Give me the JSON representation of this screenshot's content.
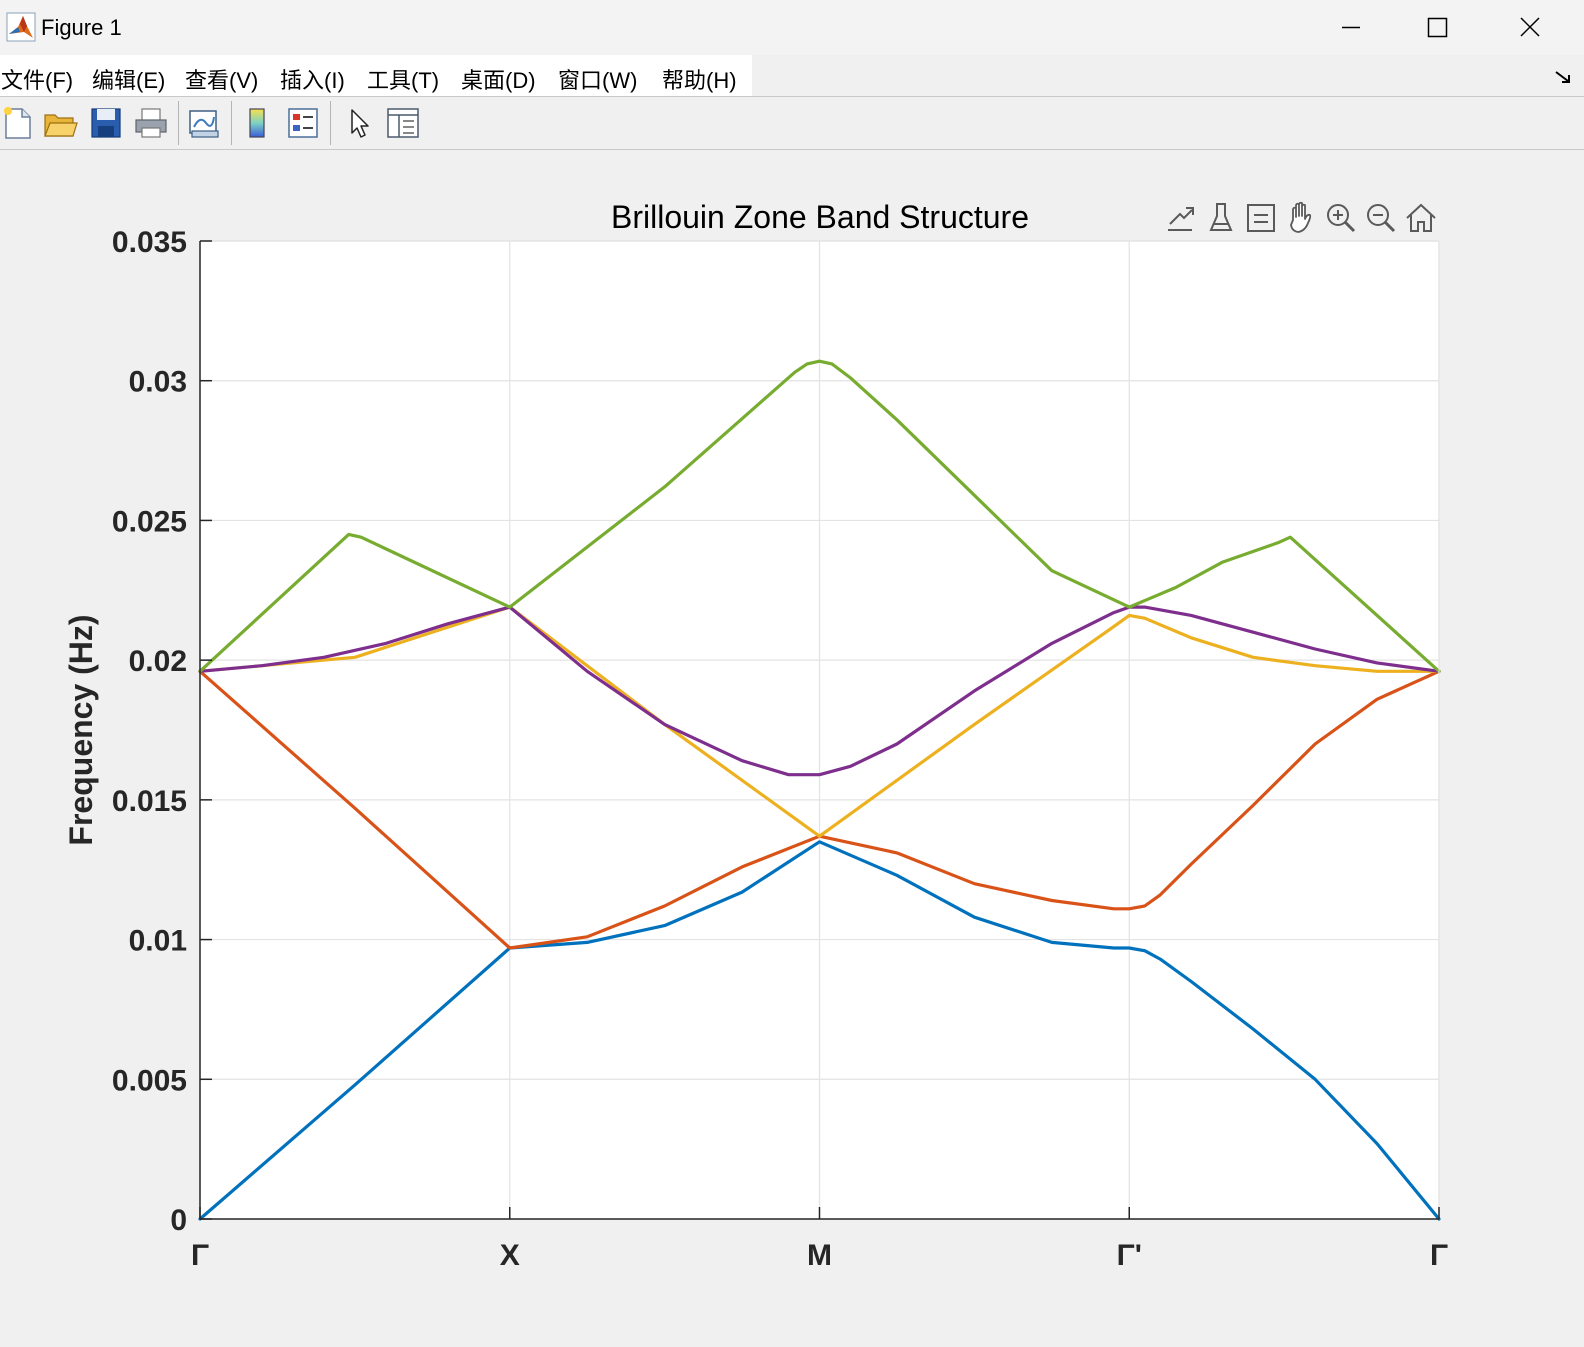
{
  "window": {
    "title": "Figure 1"
  },
  "menu": [
    "文件(F)",
    "编辑(E)",
    "查看(V)",
    "插入(I)",
    "工具(T)",
    "桌面(D)",
    "窗口(W)",
    "帮助(H)"
  ],
  "toolbar_icons": [
    "new-figure-icon",
    "open-file-icon",
    "save-icon",
    "print-icon",
    "link-plot-icon",
    "colorbar-icon",
    "legend-icon",
    "edit-plot-arrow-icon",
    "property-inspector-icon"
  ],
  "axes_toolbar_icons": [
    "export-icon",
    "brush-icon",
    "data-tips-icon",
    "pan-icon",
    "zoom-in-icon",
    "zoom-out-icon",
    "restore-view-icon"
  ],
  "chart_data": {
    "type": "line",
    "title": "Brillouin Zone Band Structure",
    "xlabel": "",
    "ylabel": "Frequency (Hz)",
    "xlim": [
      0,
      4
    ],
    "ylim": [
      0,
      0.035
    ],
    "xticks": [
      0,
      1,
      2,
      3,
      4
    ],
    "xtick_labels": [
      "Γ",
      "X",
      "M",
      "Γ'",
      "Γ"
    ],
    "yticks": [
      0,
      0.005,
      0.01,
      0.015,
      0.02,
      0.025,
      0.03,
      0.035
    ],
    "ytick_labels": [
      "0",
      "0.005",
      "0.01",
      "0.015",
      "0.02",
      "0.025",
      "0.03",
      "0.035"
    ],
    "grid": true,
    "series": [
      {
        "color": "#0072BD",
        "x": [
          0,
          0.5,
          1,
          1.25,
          1.5,
          1.75,
          2,
          2.25,
          2.5,
          2.75,
          2.95,
          3,
          3.05,
          3.1,
          3.2,
          3.4,
          3.6,
          3.8,
          4
        ],
        "y": [
          0,
          0.0048,
          0.0097,
          0.0099,
          0.0105,
          0.0117,
          0.0135,
          0.0123,
          0.0108,
          0.0099,
          0.0097,
          0.0097,
          0.0096,
          0.0093,
          0.0085,
          0.0068,
          0.005,
          0.0027,
          0
        ]
      },
      {
        "color": "#D95319",
        "x": [
          0,
          0.5,
          1,
          1.25,
          1.5,
          1.75,
          2,
          2.25,
          2.5,
          2.75,
          2.95,
          3,
          3.05,
          3.1,
          3.2,
          3.4,
          3.6,
          3.8,
          4
        ],
        "y": [
          0.0196,
          0.0147,
          0.0097,
          0.0101,
          0.0112,
          0.0126,
          0.0137,
          0.0131,
          0.012,
          0.0114,
          0.0111,
          0.0111,
          0.0112,
          0.0116,
          0.0127,
          0.0148,
          0.017,
          0.0186,
          0.0196
        ]
      },
      {
        "color": "#EDB120",
        "x": [
          0,
          0.5,
          1,
          1.5,
          2,
          2.5,
          2.95,
          3,
          3.05,
          3.2,
          3.4,
          3.6,
          3.8,
          4
        ],
        "y": [
          0.0196,
          0.0201,
          0.0219,
          0.0177,
          0.0137,
          0.0177,
          0.0212,
          0.0216,
          0.0215,
          0.0208,
          0.0201,
          0.0198,
          0.0196,
          0.0196
        ]
      },
      {
        "color": "#7E2F8E",
        "x": [
          0,
          0.2,
          0.4,
          0.6,
          0.8,
          1,
          1.25,
          1.5,
          1.75,
          1.9,
          2,
          2.1,
          2.25,
          2.5,
          2.75,
          2.95,
          3,
          3.05,
          3.2,
          3.4,
          3.6,
          3.8,
          4
        ],
        "y": [
          0.0196,
          0.0198,
          0.0201,
          0.0206,
          0.0213,
          0.0219,
          0.0196,
          0.0177,
          0.0164,
          0.0159,
          0.0159,
          0.0162,
          0.017,
          0.0189,
          0.0206,
          0.0217,
          0.0219,
          0.0219,
          0.0216,
          0.021,
          0.0204,
          0.0199,
          0.0196
        ]
      },
      {
        "color": "#77AC30",
        "x": [
          0,
          0.48,
          0.52,
          1,
          1.5,
          1.92,
          1.96,
          2,
          2.04,
          2.1,
          2.25,
          2.5,
          2.75,
          3,
          3.15,
          3.3,
          3.48,
          3.52,
          4
        ],
        "y": [
          0.0196,
          0.0245,
          0.0244,
          0.0219,
          0.0262,
          0.0303,
          0.0306,
          0.0307,
          0.0306,
          0.0301,
          0.0286,
          0.0259,
          0.0232,
          0.0219,
          0.0226,
          0.0235,
          0.0242,
          0.0244,
          0.0196
        ]
      }
    ]
  }
}
